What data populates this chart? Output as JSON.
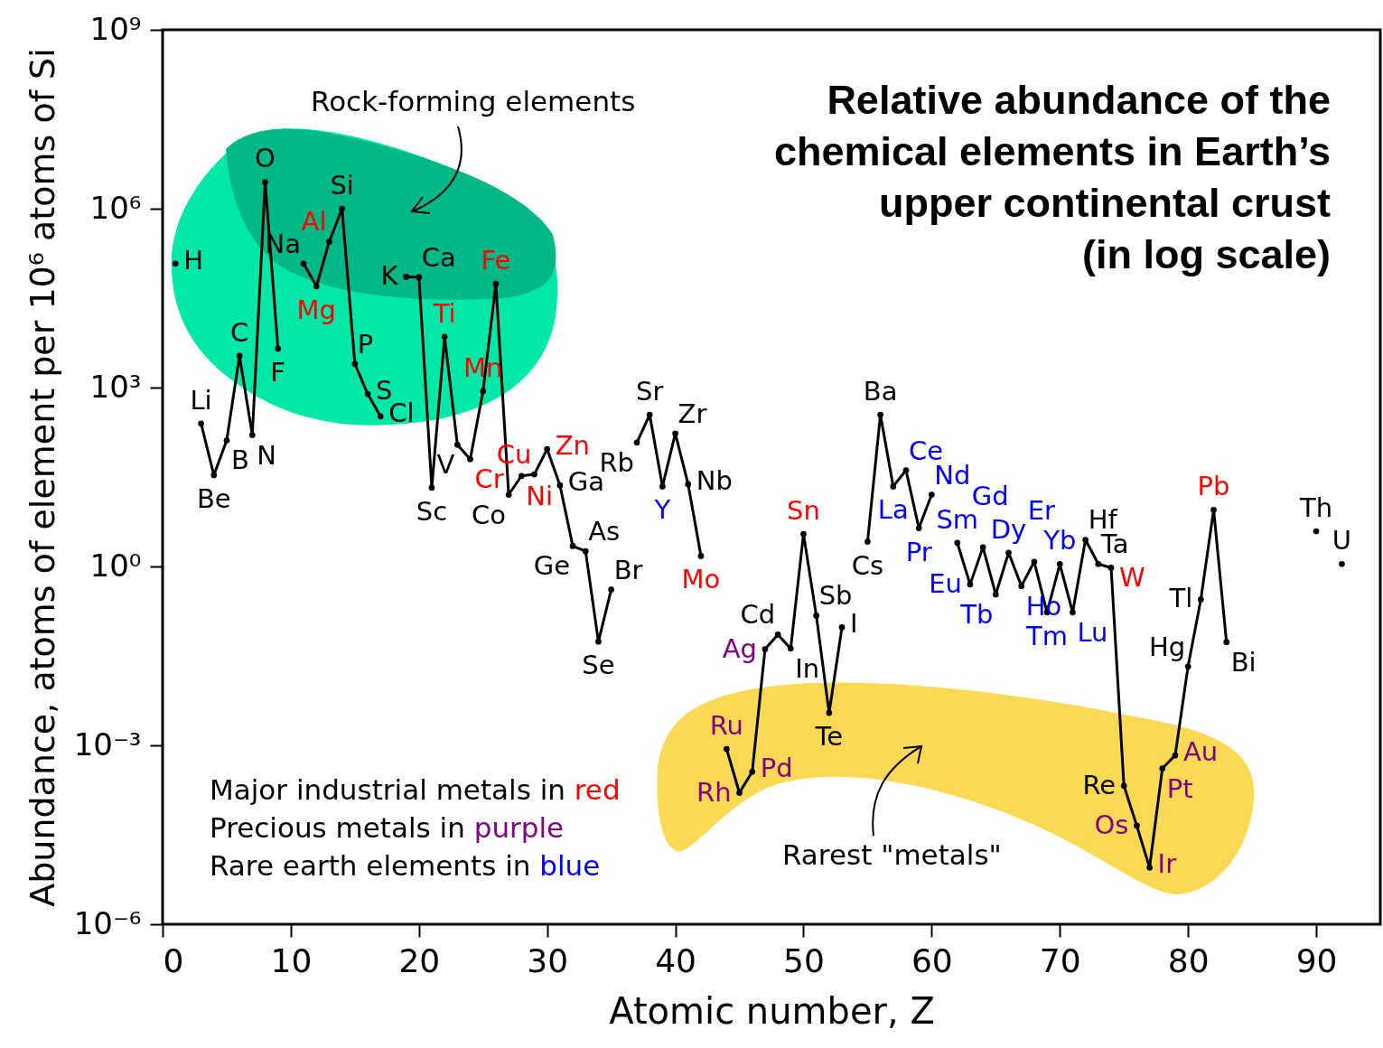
{
  "chart_data": {
    "type": "line",
    "title": "Relative abundance of the\nchemical elements in Earth’s\nupper continental crust\n(in log scale)",
    "xlabel": "Atomic number, Z",
    "ylabel": "Abundance, atoms of element per 10⁶ atoms of Si",
    "x": [
      1,
      2,
      3,
      4,
      5,
      6,
      7,
      8,
      9,
      10,
      11,
      12,
      13,
      14,
      15,
      16,
      17,
      18,
      19,
      20,
      21,
      22,
      23,
      24,
      25,
      26,
      27,
      28,
      29,
      30,
      31,
      32,
      33,
      34,
      35,
      36,
      37,
      38,
      39,
      40,
      41,
      42,
      43,
      44,
      45,
      46,
      47,
      48,
      49,
      50,
      51,
      52,
      53,
      54,
      55,
      56,
      57,
      58,
      59,
      60,
      61,
      62,
      63,
      64,
      65,
      66,
      67,
      68,
      69,
      70,
      71,
      72,
      73,
      74,
      75,
      76,
      77,
      78,
      79,
      80,
      81,
      82,
      83,
      84,
      85,
      86,
      87,
      88,
      89,
      90,
      91,
      92
    ],
    "series": [
      {
        "color": "#000000",
        "values": [
          120000,
          null,
          250,
          34,
          130,
          3400,
          160,
          2800000,
          4500,
          null,
          120000,
          50000,
          280000,
          1000000,
          2500,
          780,
          330,
          null,
          72000,
          71000,
          21,
          7100,
          110,
          63,
          870,
          55000,
          16,
          33,
          35,
          93,
          23,
          2.2,
          1.8,
          0.055,
          0.41,
          null,
          120,
          350,
          22,
          170,
          24,
          1.5,
          null,
          0.00087,
          0.00016,
          0.00036,
          0.041,
          0.072,
          0.042,
          3.5,
          0.15,
          0.0035,
          0.095,
          null,
          2.6,
          350,
          22,
          41,
          4.4,
          16,
          null,
          2.5,
          0.5,
          2.1,
          0.34,
          1.7,
          0.47,
          1.2,
          0.17,
          1.1,
          0.17,
          2.8,
          1.1,
          0.95,
          0.00021,
          4.5e-05,
          8.9e-06,
          0.00041,
          0.00068,
          0.021,
          0.28,
          8.9,
          0.054,
          null,
          null,
          null,
          null,
          null,
          null,
          3.9,
          null,
          1.1
        ],
        "value_labels": [
          "H",
          null,
          "Li",
          "Be",
          "B",
          "C",
          "N",
          "O",
          "F",
          null,
          "Na",
          "Mg",
          "Al",
          "Si",
          "P",
          "S",
          "Cl",
          null,
          "K",
          "Ca",
          "Sc",
          "Ti",
          "V",
          "Cr",
          "Mn",
          "Fe",
          "Co",
          "Ni",
          "Cu",
          "Zn",
          "Ga",
          "Ge",
          "As",
          "Se",
          "Br",
          null,
          "Rb",
          "Sr",
          "Y",
          "Zr",
          "Nb",
          "Mo",
          null,
          "Ru",
          "Rh",
          "Pd",
          "Ag",
          "Cd",
          "In",
          "Sn",
          "Sb",
          "Te",
          "I",
          null,
          "Cs",
          "Ba",
          "La",
          "Ce",
          "Pr",
          "Nd",
          null,
          "Sm",
          "Eu",
          "Gd",
          "Tb",
          "Dy",
          "Ho",
          "Er",
          "Tm",
          "Yb",
          "Lu",
          "Hf",
          "Ta",
          "W",
          "Re",
          "Os",
          "Ir",
          "Pt",
          "Au",
          "Hg",
          "Tl",
          "Pb",
          "Bi",
          null,
          null,
          null,
          null,
          null,
          null,
          "Th",
          null,
          "U"
        ]
      }
    ],
    "xlim": [
      0,
      95
    ],
    "xticks": [
      0,
      10,
      20,
      30,
      40,
      50,
      60,
      70,
      80,
      90
    ],
    "log": true,
    "ylim": [
      1e-06,
      1000000000
    ],
    "yticks": [
      {
        "value": 1e-06,
        "label": "10⁻⁶"
      },
      {
        "value": 0.001,
        "label": "10⁻³"
      },
      {
        "value": 1,
        "label": "10⁰"
      },
      {
        "value": 1000,
        "label": "10³"
      },
      {
        "value": 1000000,
        "label": "10⁶"
      },
      {
        "value": 1000000000,
        "label": "10⁹"
      }
    ],
    "grid": false,
    "marker": "circle",
    "line_style": "solid",
    "annotations": [
      "Rock-forming elements",
      "Rarest \"metals\"",
      "Major industrial metals in red",
      "Precious metals in purple",
      "Rare earth elements in blue"
    ]
  }
}
